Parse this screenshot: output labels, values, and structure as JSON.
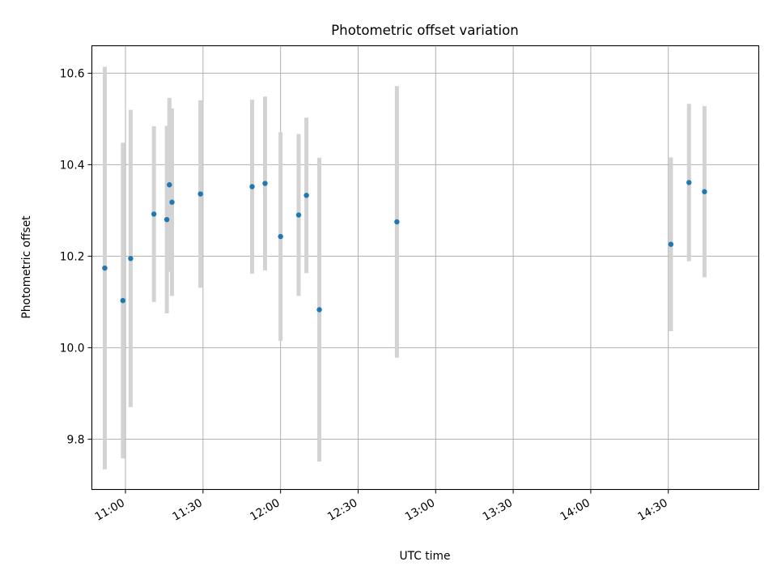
{
  "chart_data": {
    "type": "scatter",
    "title": "Photometric offset variation",
    "xlabel": "UTC time",
    "ylabel": "Photometric offset",
    "grid": true,
    "x_ticks": [
      "11:00",
      "11:30",
      "12:00",
      "12:30",
      "13:00",
      "13:30",
      "14:00",
      "14:30"
    ],
    "y_ticks": [
      "9.8",
      "10.0",
      "10.2",
      "10.4",
      "10.6"
    ],
    "xlim": [
      "10:47",
      "15:05"
    ],
    "ylim": [
      9.69,
      10.66
    ],
    "colors": {
      "points": "#1f77b4",
      "errorbars": "#d3d3d3",
      "grid": "#b0b0b0"
    },
    "series": [
      {
        "x": [
          "10:52",
          "10:59",
          "11:02",
          "11:11",
          "11:16",
          "11:17",
          "11:18",
          "11:29",
          "11:49",
          "11:54",
          "12:00",
          "12:07",
          "12:10",
          "12:15",
          "12:45",
          "14:31",
          "14:38",
          "14:44"
        ],
        "y": [
          10.174,
          10.103,
          10.195,
          10.292,
          10.28,
          10.356,
          10.318,
          10.336,
          10.352,
          10.359,
          10.243,
          10.29,
          10.333,
          10.083,
          10.275,
          10.226,
          10.361,
          10.341
        ],
        "yerr": [
          0.44,
          0.345,
          0.325,
          0.192,
          0.205,
          0.19,
          0.205,
          0.205,
          0.19,
          0.19,
          0.228,
          0.177,
          0.17,
          0.332,
          0.297,
          0.19,
          0.172,
          0.187
        ]
      }
    ]
  }
}
